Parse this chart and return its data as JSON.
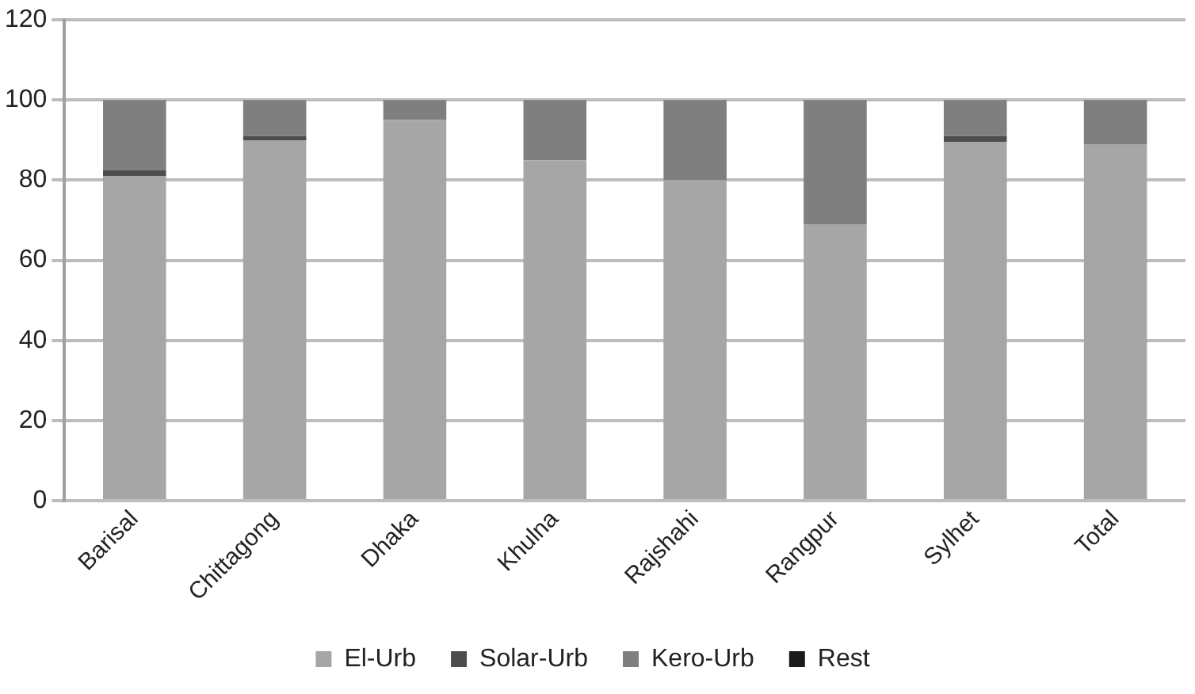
{
  "chart_data": {
    "type": "bar",
    "stacked": true,
    "categories": [
      "Barisal",
      "Chittagong",
      "Dhaka",
      "Khulna",
      "Rajshahi",
      "Rangpur",
      "Sylhet",
      "Total"
    ],
    "series": [
      {
        "name": "El-Urb",
        "color": "#a6a6a6",
        "values": [
          81,
          90,
          95,
          85,
          80,
          69,
          89.5,
          89
        ]
      },
      {
        "name": "Solar-Urb",
        "color": "#4d4d4d",
        "values": [
          1.5,
          1,
          0,
          0,
          0,
          0,
          1.5,
          0
        ]
      },
      {
        "name": "Kero-Urb",
        "color": "#7f7f7f",
        "values": [
          17.5,
          9,
          5,
          15,
          20,
          31,
          9,
          11
        ]
      },
      {
        "name": "Rest",
        "color": "#1a1a1a",
        "values": [
          0,
          0,
          0,
          0,
          0,
          0,
          0,
          0
        ]
      }
    ],
    "ylim": [
      0,
      120
    ],
    "yticks": [
      0,
      20,
      40,
      60,
      80,
      100,
      120
    ],
    "grid": "y",
    "legend": "bottom"
  }
}
